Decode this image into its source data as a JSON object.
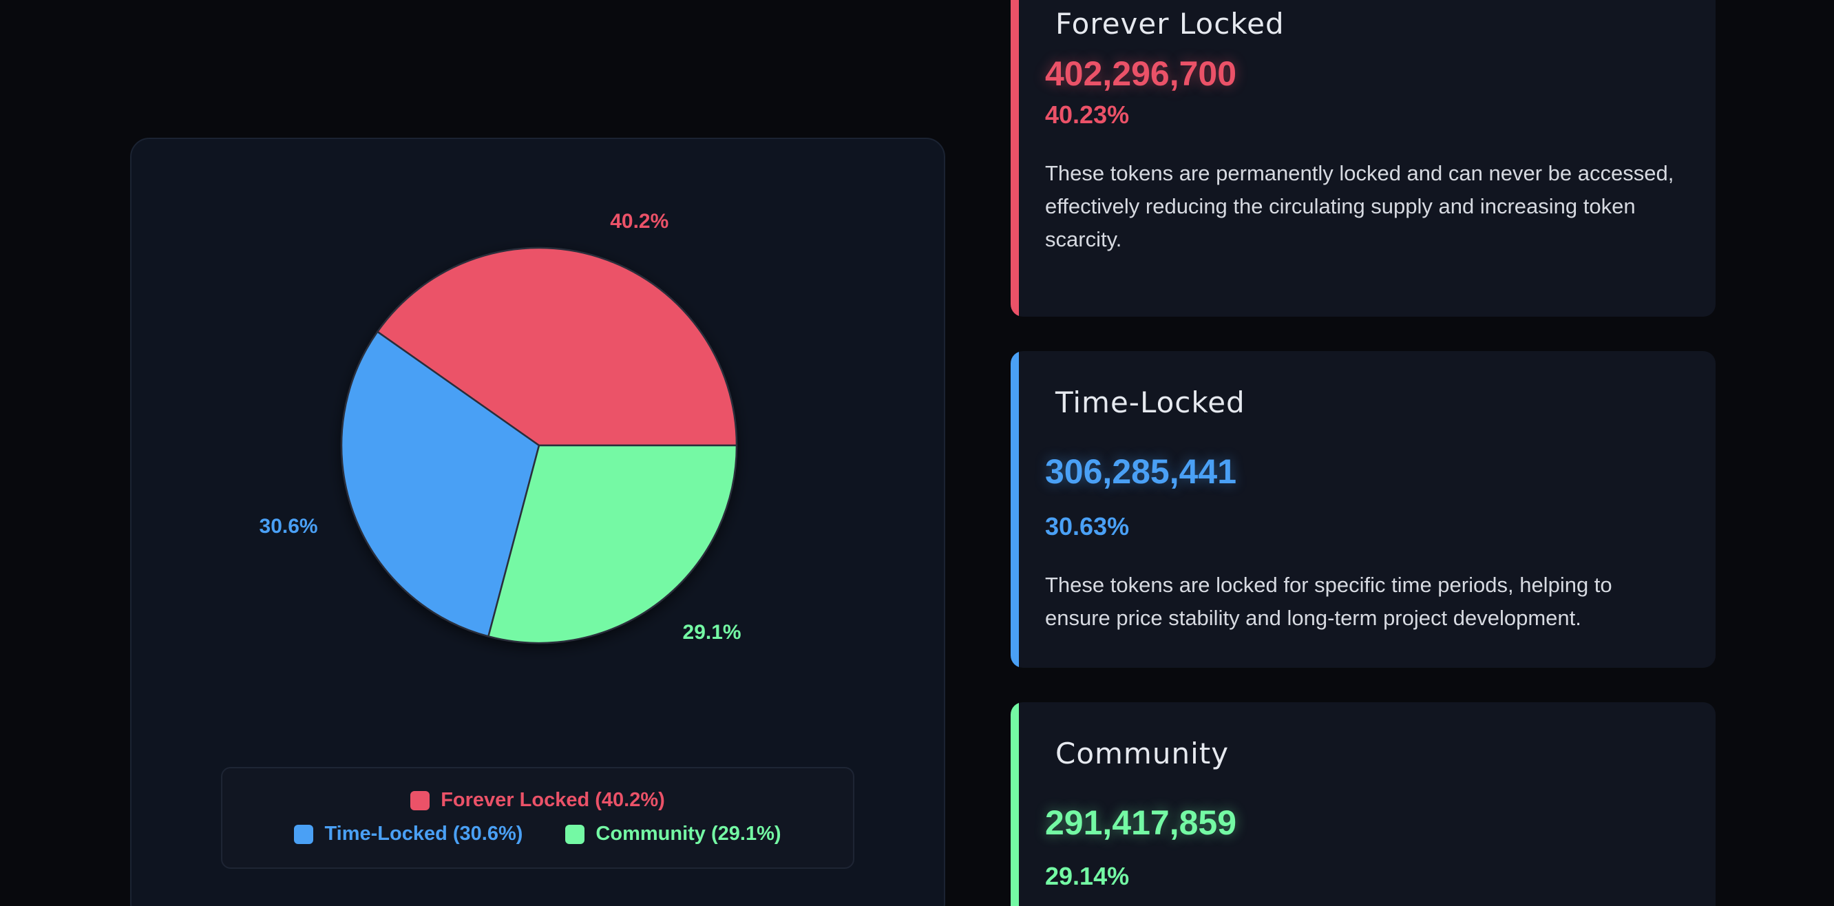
{
  "colors": {
    "forever": "#eb5268",
    "time": "#4aa0f5",
    "community": "#74f9a4"
  },
  "chart_data": {
    "type": "pie",
    "slices": [
      {
        "name": "Forever Locked",
        "value": 40.2,
        "label": "40.2%",
        "color": "#eb5268"
      },
      {
        "name": "Time-Locked",
        "value": 30.6,
        "label": "30.6%",
        "color": "#4aa0f5"
      },
      {
        "name": "Community",
        "value": 29.1,
        "label": "29.1%",
        "color": "#74f9a4"
      }
    ],
    "legend": [
      "Forever Locked (40.2%)",
      "Time-Locked (30.6%)",
      "Community (29.1%)"
    ],
    "legend_placement": "bottom"
  },
  "cards": [
    {
      "title": "Forever Locked",
      "amount": "402,296,700",
      "percent": "40.23%",
      "description": "These tokens are permanently locked and can never be accessed, effectively reducing the circulating supply and increasing token scarcity."
    },
    {
      "title": "Time-Locked",
      "amount": "306,285,441",
      "percent": "30.63%",
      "description": "These tokens are locked for specific time periods, helping to ensure price stability and long-term project development."
    },
    {
      "title": "Community",
      "amount": "291,417,859",
      "percent": "29.14%",
      "description": ""
    }
  ]
}
